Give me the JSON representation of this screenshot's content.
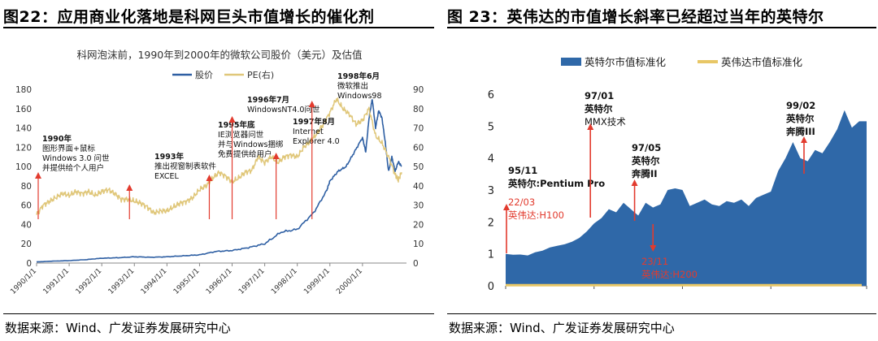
{
  "left_panel": {
    "figure_title": "图22：应用商业化落地是科网巨头市值增长的催化剂",
    "source": "数据来源：Wind、广发证券发展研究中心"
  },
  "right_panel": {
    "figure_title": "图 23：英伟达的市值增长斜率已经超过当年的英特尔",
    "source": "数据来源：Wind、广发证券发展研究中心"
  },
  "colors": {
    "price": "#2E5FA3",
    "pe": "#E0C77A",
    "arrow": "#E23B2E",
    "intel_area": "#2F68A8",
    "nvidia": "#E8C766"
  },
  "chart_data": [
    {
      "type": "line",
      "title": "科网泡沫前，1990年到2000年的微软公司股价（美元）及估值",
      "x_tick_labels": [
        "1990/1/1",
        "1991/1/1",
        "1992/1/1",
        "1993/1/1",
        "1994/1/1",
        "1995/1/1",
        "1996/1/1",
        "1997/1/1",
        "1998/1/1",
        "1999/1/1",
        "2000/1/1"
      ],
      "ylim_left": [
        0,
        180
      ],
      "yticks_left": [
        0,
        20,
        40,
        60,
        80,
        100,
        120,
        140,
        160,
        180
      ],
      "ylim_right": [
        0,
        90
      ],
      "yticks_right": [
        0,
        10,
        20,
        30,
        40,
        50,
        60,
        70,
        80,
        90
      ],
      "legend": [
        "股价",
        "PE(右)"
      ],
      "series": [
        {
          "name": "股价",
          "axis": "left",
          "points": [
            [
              1990.0,
              1.2
            ],
            [
              1990.5,
              2.0
            ],
            [
              1991.0,
              2.5
            ],
            [
              1991.5,
              3.5
            ],
            [
              1992.0,
              5.0
            ],
            [
              1992.5,
              5.5
            ],
            [
              1993.0,
              6.5
            ],
            [
              1993.5,
              6.0
            ],
            [
              1994.0,
              6.5
            ],
            [
              1994.5,
              7.5
            ],
            [
              1995.0,
              8.5
            ],
            [
              1995.5,
              12.0
            ],
            [
              1996.0,
              13.0
            ],
            [
              1996.5,
              16.0
            ],
            [
              1997.0,
              20.0
            ],
            [
              1997.5,
              32.0
            ],
            [
              1998.0,
              35.0
            ],
            [
              1998.5,
              52.0
            ],
            [
              1998.9,
              75.0
            ],
            [
              1999.0,
              85.0
            ],
            [
              1999.25,
              95.0
            ],
            [
              1999.5,
              100.0
            ],
            [
              1999.75,
              115.0
            ],
            [
              2000.0,
              130.0
            ],
            [
              2000.1,
              115.0
            ],
            [
              2000.2,
              150.0
            ],
            [
              2000.3,
              170.0
            ],
            [
              2000.4,
              140.0
            ],
            [
              2000.5,
              158.0
            ],
            [
              2000.6,
              150.0
            ],
            [
              2000.7,
              125.0
            ],
            [
              2000.8,
              95.0
            ],
            [
              2000.9,
              110.0
            ],
            [
              2001.0,
              95.0
            ],
            [
              2001.1,
              105.0
            ],
            [
              2001.2,
              100.0
            ]
          ]
        },
        {
          "name": "PE(右)",
          "axis": "right",
          "points": [
            [
              1990.0,
              25
            ],
            [
              1990.2,
              30
            ],
            [
              1990.4,
              32
            ],
            [
              1990.6,
              34
            ],
            [
              1990.8,
              36
            ],
            [
              1991.0,
              35
            ],
            [
              1991.2,
              37
            ],
            [
              1991.4,
              36
            ],
            [
              1991.6,
              37
            ],
            [
              1991.8,
              35
            ],
            [
              1992.0,
              37
            ],
            [
              1992.2,
              38
            ],
            [
              1992.4,
              36
            ],
            [
              1992.6,
              33
            ],
            [
              1992.8,
              33
            ],
            [
              1993.0,
              32
            ],
            [
              1993.2,
              31
            ],
            [
              1993.4,
              29
            ],
            [
              1993.6,
              26
            ],
            [
              1993.8,
              27
            ],
            [
              1994.0,
              27
            ],
            [
              1994.2,
              29
            ],
            [
              1994.4,
              31
            ],
            [
              1994.6,
              32
            ],
            [
              1994.8,
              34
            ],
            [
              1995.0,
              38
            ],
            [
              1995.2,
              40
            ],
            [
              1995.4,
              44
            ],
            [
              1995.6,
              47
            ],
            [
              1995.8,
              45
            ],
            [
              1996.0,
              42
            ],
            [
              1996.2,
              44
            ],
            [
              1996.4,
              47
            ],
            [
              1996.6,
              48
            ],
            [
              1996.8,
              55
            ],
            [
              1997.0,
              52
            ],
            [
              1997.2,
              55
            ],
            [
              1997.4,
              52
            ],
            [
              1997.6,
              55
            ],
            [
              1997.8,
              56
            ],
            [
              1998.0,
              55
            ],
            [
              1998.2,
              60
            ],
            [
              1998.4,
              63
            ],
            [
              1998.6,
              67
            ],
            [
              1998.8,
              72
            ],
            [
              1999.0,
              78
            ],
            [
              1999.2,
              85
            ],
            [
              1999.4,
              80
            ],
            [
              1999.6,
              77
            ],
            [
              1999.8,
              72
            ],
            [
              2000.0,
              74
            ],
            [
              2000.2,
              80
            ],
            [
              2000.4,
              66
            ],
            [
              2000.6,
              62
            ],
            [
              2000.8,
              55
            ],
            [
              2001.0,
              46
            ],
            [
              2001.1,
              43
            ],
            [
              2001.2,
              47
            ]
          ]
        }
      ],
      "annotations": [
        {
          "year": 1990.05,
          "lines": [
            "1990年",
            "图形界面+鼠标",
            "Windows 3.0 问世",
            "并提供给个人用户"
          ]
        },
        {
          "year": 1992.85,
          "lines": [
            "1993年",
            "推出视窗制表软件",
            "EXCEL"
          ]
        },
        {
          "year": 1995.3,
          "lines": [
            "1995年底",
            "IE浏览器问世",
            "并与Windows捆绑",
            "免费提供给用户"
          ]
        },
        {
          "year": 1996.0,
          "lines": [
            "1996年7月",
            "WindowsNT4.0问世"
          ]
        },
        {
          "year": 1997.35,
          "lines": [
            "1997年8月",
            "Internet",
            "Explorer 4.0"
          ]
        },
        {
          "year": 1998.45,
          "lines": [
            "1998年6月",
            "微软推出",
            "Windows98"
          ]
        }
      ]
    },
    {
      "type": "area",
      "ylim": [
        0,
        6
      ],
      "yticks": [
        0,
        1,
        2,
        3,
        4,
        5,
        6
      ],
      "legend": [
        "英特尔市值标准化",
        "英伟达市值标准化"
      ],
      "series": [
        {
          "name": "英特尔市值标准化",
          "points": [
            [
              0,
              1.0
            ],
            [
              1,
              0.97
            ],
            [
              2,
              0.98
            ],
            [
              3,
              0.95
            ],
            [
              4,
              1.05
            ],
            [
              5,
              1.1
            ],
            [
              6,
              1.2
            ],
            [
              7,
              1.25
            ],
            [
              8,
              1.3
            ],
            [
              9,
              1.38
            ],
            [
              10,
              1.5
            ],
            [
              11,
              1.7
            ],
            [
              12,
              1.95
            ],
            [
              13,
              2.12
            ],
            [
              14,
              2.4
            ],
            [
              15,
              2.3
            ],
            [
              16,
              2.6
            ],
            [
              17,
              2.4
            ],
            [
              18,
              2.2
            ],
            [
              19,
              2.6
            ],
            [
              20,
              2.45
            ],
            [
              21,
              2.55
            ],
            [
              22,
              3.0
            ],
            [
              23,
              3.05
            ],
            [
              24,
              3.0
            ],
            [
              25,
              2.5
            ],
            [
              26,
              2.6
            ],
            [
              27,
              2.7
            ],
            [
              28,
              2.55
            ],
            [
              29,
              2.5
            ],
            [
              30,
              2.65
            ],
            [
              31,
              2.6
            ],
            [
              32,
              2.7
            ],
            [
              33,
              2.5
            ],
            [
              34,
              2.75
            ],
            [
              35,
              2.85
            ],
            [
              36,
              2.95
            ],
            [
              37,
              3.6
            ],
            [
              38,
              4.0
            ],
            [
              39,
              4.5
            ],
            [
              40,
              4.0
            ],
            [
              41,
              3.9
            ],
            [
              42,
              4.25
            ],
            [
              43,
              4.15
            ],
            [
              44,
              4.5
            ],
            [
              45,
              4.9
            ],
            [
              46,
              5.5
            ],
            [
              47,
              4.95
            ],
            [
              48,
              5.15
            ],
            [
              49,
              5.15
            ]
          ]
        },
        {
          "name": "英伟达市值标准化",
          "points": [
            [
              0,
              0.02
            ],
            [
              49,
              0.02
            ]
          ]
        }
      ],
      "annotations": [
        {
          "index": 0,
          "lines": [
            "95/11",
            "英特尔:Pentium Pro"
          ],
          "dir": "up"
        },
        {
          "index": 11.5,
          "lines": [
            "97/01",
            "英特尔",
            "MMX技术"
          ],
          "dir": "up"
        },
        {
          "index": 17.5,
          "lines": [
            "97/05",
            "英特尔",
            "奔腾II"
          ],
          "dir": "up"
        },
        {
          "index": 40.5,
          "lines": [
            "99/02",
            "英特尔",
            "奔腾III"
          ],
          "dir": "up"
        },
        {
          "index": 0,
          "lines": [
            "22/03",
            "英伟达:H100"
          ],
          "dir": "up"
        },
        {
          "index": 20,
          "lines": [
            "23/11",
            "英伟达:H200"
          ],
          "dir": "down"
        }
      ]
    }
  ]
}
